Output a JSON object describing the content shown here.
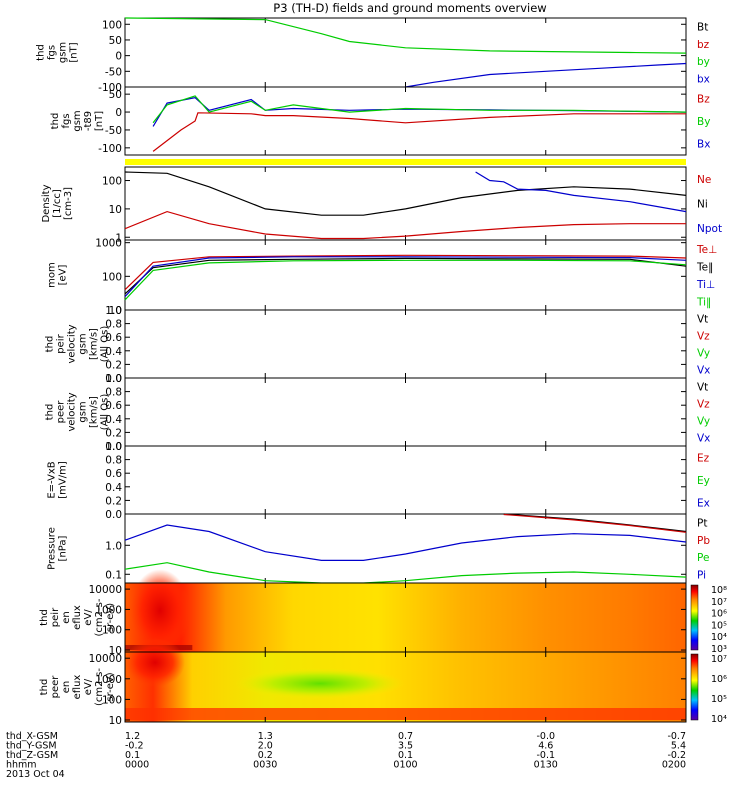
{
  "title": "P3 (TH-D) fields and ground moments overview",
  "colors": {
    "black": "#000000",
    "red": "#cc0000",
    "green": "#00cc00",
    "blue": "#0000cc",
    "yellow": "#ffff00"
  },
  "colorbars": {
    "top": [
      "10⁸",
      "10⁷",
      "10⁶",
      "10⁵",
      "10⁴",
      "10³"
    ],
    "bottom": [
      "10⁷",
      "10⁶",
      "10⁵",
      "10⁴"
    ]
  },
  "footer": {
    "rows": [
      {
        "label": "thd_X-GSM",
        "values": [
          "1.2",
          "1.3",
          "0.7",
          "-0.0",
          "-0.7"
        ]
      },
      {
        "label": "thd_Y-GSM",
        "values": [
          "-0.2",
          "2.0",
          "3.5",
          "4.6",
          "5.4"
        ]
      },
      {
        "label": "thd_Z-GSM",
        "values": [
          "0.1",
          "0.2",
          "0.1",
          "-0.1",
          "-0.2"
        ]
      },
      {
        "label": "hhmm",
        "values": [
          "0000",
          "0030",
          "0100",
          "0130",
          "0200"
        ]
      }
    ],
    "date": "2013 Oct 04"
  },
  "chart_data": [
    {
      "type": "line",
      "ylabel": [
        "thd",
        "fgs",
        "gsm",
        "[nT]"
      ],
      "yticks": [
        "100",
        "50",
        "0",
        "-50",
        "-100"
      ],
      "ylim": [
        -100,
        120
      ],
      "legend": [
        {
          "name": "Bt",
          "color": "#000000"
        },
        {
          "name": "bz",
          "color": "#cc0000"
        },
        {
          "name": "by",
          "color": "#00cc00"
        },
        {
          "name": "bx",
          "color": "#0000cc"
        }
      ],
      "series": [
        {
          "name": "by",
          "color": "#00cc00",
          "x": [
            0,
            0.5,
            0.7,
            0.8,
            1.0,
            1.3,
            1.6,
            1.8,
            2.0
          ],
          "y": [
            120,
            115,
            70,
            45,
            25,
            15,
            12,
            10,
            8
          ]
        },
        {
          "name": "bx",
          "color": "#0000cc",
          "x": [
            1.0,
            1.1,
            1.3,
            1.5,
            1.7,
            1.9,
            2.0
          ],
          "y": [
            -100,
            -85,
            -60,
            -50,
            -40,
            -30,
            -25
          ]
        }
      ]
    },
    {
      "type": "line",
      "ylabel": [
        "thd",
        "fgs",
        "gsm",
        "-t89",
        "[nT]"
      ],
      "yticks": [
        "50",
        "0",
        "-50",
        "-100"
      ],
      "ylim": [
        -120,
        70
      ],
      "legend": [
        {
          "name": "Bz",
          "color": "#cc0000"
        },
        {
          "name": "By",
          "color": "#00cc00"
        },
        {
          "name": "Bx",
          "color": "#0000cc"
        }
      ],
      "series": [
        {
          "name": "Bx",
          "color": "#0000cc",
          "x": [
            0.1,
            0.15,
            0.25,
            0.3,
            0.45,
            0.5,
            0.6,
            0.8,
            1.0,
            1.3,
            1.6,
            2.0
          ],
          "y": [
            -40,
            25,
            40,
            5,
            35,
            5,
            10,
            5,
            8,
            6,
            4,
            0
          ]
        },
        {
          "name": "By",
          "color": "#00cc00",
          "x": [
            0.1,
            0.15,
            0.25,
            0.3,
            0.45,
            0.5,
            0.6,
            0.8,
            1.0,
            1.3,
            1.6,
            2.0
          ],
          "y": [
            -30,
            20,
            45,
            0,
            30,
            5,
            20,
            0,
            10,
            5,
            5,
            0
          ]
        },
        {
          "name": "Bz",
          "color": "#cc0000",
          "x": [
            0.1,
            0.2,
            0.25,
            0.26,
            0.45,
            0.5,
            0.6,
            0.8,
            1.0,
            1.3,
            1.6,
            2.0
          ],
          "y": [
            -110,
            -50,
            -25,
            -2,
            -5,
            -10,
            -10,
            -18,
            -30,
            -15,
            -5,
            -5
          ]
        }
      ]
    },
    {
      "type": "line",
      "ylabel": [
        "Density",
        "[1/cc]",
        "[cm-3]"
      ],
      "yticks": [
        "100",
        "10",
        "1"
      ],
      "yscale": "log",
      "ylim": [
        0.8,
        300
      ],
      "legend": [
        {
          "name": "Ne",
          "color": "#cc0000"
        },
        {
          "name": "Ni",
          "color": "#000000"
        },
        {
          "name": "Npot",
          "color": "#0000cc"
        }
      ],
      "series": [
        {
          "name": "Ni",
          "color": "#000000",
          "x": [
            0,
            0.15,
            0.3,
            0.5,
            0.7,
            0.85,
            1.0,
            1.2,
            1.4,
            1.6,
            1.8,
            2.0
          ],
          "y": [
            200,
            180,
            60,
            10,
            6,
            6,
            10,
            25,
            45,
            60,
            50,
            30
          ]
        },
        {
          "name": "Npot",
          "color": "#0000cc",
          "x": [
            1.25,
            1.3,
            1.35,
            1.4,
            1.5,
            1.6,
            1.8,
            2.0
          ],
          "y": [
            200,
            100,
            90,
            50,
            45,
            30,
            18,
            8
          ]
        },
        {
          "name": "Ne",
          "color": "#cc0000",
          "x": [
            0,
            0.15,
            0.3,
            0.5,
            0.7,
            0.85,
            1.0,
            1.2,
            1.4,
            1.6,
            1.8,
            2.0
          ],
          "y": [
            2,
            8,
            3,
            1.3,
            0.9,
            0.9,
            1.1,
            1.6,
            2.2,
            2.8,
            3.0,
            3.0
          ]
        }
      ]
    },
    {
      "type": "line",
      "ylabel": [
        "mom",
        "[eV]"
      ],
      "yticks": [
        "1000",
        "100",
        "10"
      ],
      "yscale": "log",
      "ylim": [
        10,
        1200
      ],
      "legend": [
        {
          "name": "Te⊥",
          "color": "#cc0000"
        },
        {
          "name": "Te‖",
          "color": "#000000"
        },
        {
          "name": "Ti⊥",
          "color": "#0000cc"
        },
        {
          "name": "Ti‖",
          "color": "#00cc00"
        }
      ],
      "series": [
        {
          "name": "Te⊥",
          "color": "#cc0000",
          "x": [
            0,
            0.1,
            0.3,
            0.6,
            1.0,
            1.4,
            1.8,
            2.0
          ],
          "y": [
            40,
            260,
            380,
            400,
            420,
            410,
            400,
            350
          ]
        },
        {
          "name": "Te‖",
          "color": "#000000",
          "x": [
            0,
            0.1,
            0.3,
            0.6,
            1.0,
            1.4,
            1.8,
            2.0
          ],
          "y": [
            30,
            180,
            300,
            320,
            340,
            330,
            320,
            200
          ]
        },
        {
          "name": "Ti⊥",
          "color": "#0000cc",
          "x": [
            0,
            0.1,
            0.3,
            0.6,
            1.0,
            1.4,
            1.8,
            2.0
          ],
          "y": [
            25,
            200,
            350,
            380,
            380,
            370,
            360,
            300
          ]
        },
        {
          "name": "Ti‖",
          "color": "#00cc00",
          "x": [
            0,
            0.1,
            0.3,
            0.6,
            1.0,
            1.4,
            1.8,
            2.0
          ],
          "y": [
            20,
            150,
            250,
            290,
            300,
            300,
            290,
            220
          ]
        }
      ]
    },
    {
      "type": "line",
      "ylabel": [
        "thd",
        "peir",
        "velocity",
        "gsm",
        "[km/s]",
        "(All Qs)"
      ],
      "yticks": [
        "1.0",
        "0.8",
        "0.6",
        "0.4",
        "0.2",
        "0.0"
      ],
      "ylim": [
        0,
        1
      ],
      "legend": [
        {
          "name": "Vt",
          "color": "#000000"
        },
        {
          "name": "Vz",
          "color": "#cc0000"
        },
        {
          "name": "Vy",
          "color": "#00cc00"
        },
        {
          "name": "Vx",
          "color": "#0000cc"
        }
      ],
      "series": []
    },
    {
      "type": "line",
      "ylabel": [
        "thd",
        "peer",
        "velocity",
        "gsm",
        "[km/s]",
        "(All Qs)"
      ],
      "yticks": [
        "1.0",
        "0.8",
        "0.6",
        "0.4",
        "0.2",
        "0.0"
      ],
      "ylim": [
        0,
        1
      ],
      "legend": [
        {
          "name": "Vt",
          "color": "#000000"
        },
        {
          "name": "Vz",
          "color": "#cc0000"
        },
        {
          "name": "Vy",
          "color": "#00cc00"
        },
        {
          "name": "Vx",
          "color": "#0000cc"
        }
      ],
      "series": []
    },
    {
      "type": "line",
      "ylabel": [
        "E=-VxB",
        "[mV/m]"
      ],
      "yticks": [
        "1.0",
        "0.8",
        "0.6",
        "0.4",
        "0.2",
        "0.0"
      ],
      "ylim": [
        0,
        1
      ],
      "legend": [
        {
          "name": "Ez",
          "color": "#cc0000"
        },
        {
          "name": "Ey",
          "color": "#00cc00"
        },
        {
          "name": "Ex",
          "color": "#0000cc"
        }
      ],
      "series": []
    },
    {
      "type": "line",
      "ylabel": [
        "Pressure",
        "[nPa]"
      ],
      "yticks": [
        "1.0",
        "0.1"
      ],
      "yscale": "log",
      "ylim": [
        0.05,
        12
      ],
      "legend": [
        {
          "name": "Pt",
          "color": "#000000"
        },
        {
          "name": "Pb",
          "color": "#cc0000"
        },
        {
          "name": "Pe",
          "color": "#00cc00"
        },
        {
          "name": "Pi",
          "color": "#0000cc"
        }
      ],
      "series": [
        {
          "name": "Pt",
          "color": "#000000",
          "x": [
            1.35,
            1.6,
            1.8,
            2.0
          ],
          "y": [
            12,
            8,
            5,
            3
          ]
        },
        {
          "name": "Pb",
          "color": "#cc0000",
          "x": [
            1.35,
            1.6,
            1.8,
            2.0
          ],
          "y": [
            11.5,
            7.5,
            4.8,
            2.8
          ]
        },
        {
          "name": "Pi",
          "color": "#0000cc",
          "x": [
            0,
            0.15,
            0.3,
            0.5,
            0.7,
            0.85,
            1.0,
            1.2,
            1.4,
            1.6,
            1.8,
            2.0
          ],
          "y": [
            1.5,
            5,
            3,
            0.6,
            0.3,
            0.3,
            0.5,
            1.2,
            2,
            2.5,
            2.2,
            1.3
          ]
        },
        {
          "name": "Pe",
          "color": "#00cc00",
          "x": [
            0,
            0.15,
            0.3,
            0.5,
            0.7,
            0.85,
            1.0,
            1.2,
            1.4,
            1.6,
            1.8,
            2.0
          ],
          "y": [
            0.15,
            0.25,
            0.12,
            0.06,
            0.05,
            0.05,
            0.06,
            0.09,
            0.11,
            0.12,
            0.1,
            0.08
          ]
        }
      ]
    },
    {
      "type": "heatmap",
      "ylabel": [
        "thd",
        "peir",
        "en",
        "eflux",
        "eV/",
        "(cm2-s-",
        "sr-eV)"
      ],
      "yticks": [
        "10000",
        "1000",
        "100",
        "10"
      ],
      "yscale": "log",
      "ylim": [
        8,
        20000
      ]
    },
    {
      "type": "heatmap",
      "ylabel": [
        "thd",
        "peer",
        "en",
        "eflux",
        "eV/",
        "(cm2-s-",
        "sr-eV)"
      ],
      "yticks": [
        "10000",
        "1000",
        "100",
        "10"
      ],
      "yscale": "log",
      "ylim": [
        8,
        20000
      ]
    }
  ]
}
